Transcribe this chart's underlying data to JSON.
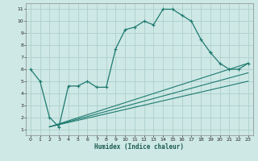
{
  "xlabel": "Humidex (Indice chaleur)",
  "bg_color": "#cde8e5",
  "grid_color": "#aed0cc",
  "line_color": "#1e7a70",
  "xlim": [
    -0.5,
    23.5
  ],
  "ylim": [
    0.5,
    11.5
  ],
  "xticks": [
    0,
    1,
    2,
    3,
    4,
    5,
    6,
    7,
    8,
    9,
    10,
    11,
    12,
    13,
    14,
    15,
    16,
    17,
    18,
    19,
    20,
    21,
    22,
    23
  ],
  "yticks": [
    1,
    2,
    3,
    4,
    5,
    6,
    7,
    8,
    9,
    10,
    11
  ],
  "main_line": {
    "x": [
      0,
      1,
      2,
      3,
      4,
      5,
      6,
      7,
      8,
      9,
      10,
      11,
      12,
      13,
      14,
      15,
      16,
      17,
      18,
      19
    ],
    "y": [
      6.0,
      5.0,
      2.0,
      1.2,
      4.6,
      4.6,
      5.0,
      4.5,
      4.5,
      7.7,
      9.3,
      9.5,
      10.0,
      9.7,
      11.0,
      11.0,
      10.5,
      10.0,
      8.5,
      7.4
    ]
  },
  "right_segment": {
    "x": [
      19,
      20,
      21,
      22,
      23
    ],
    "y": [
      7.4,
      6.5,
      6.0,
      6.0,
      6.5
    ]
  },
  "diag_lines": [
    {
      "x": [
        2,
        23
      ],
      "y": [
        1.2,
        6.5
      ]
    },
    {
      "x": [
        2,
        23
      ],
      "y": [
        1.2,
        5.7
      ]
    },
    {
      "x": [
        2,
        23
      ],
      "y": [
        1.2,
        5.0
      ]
    }
  ]
}
